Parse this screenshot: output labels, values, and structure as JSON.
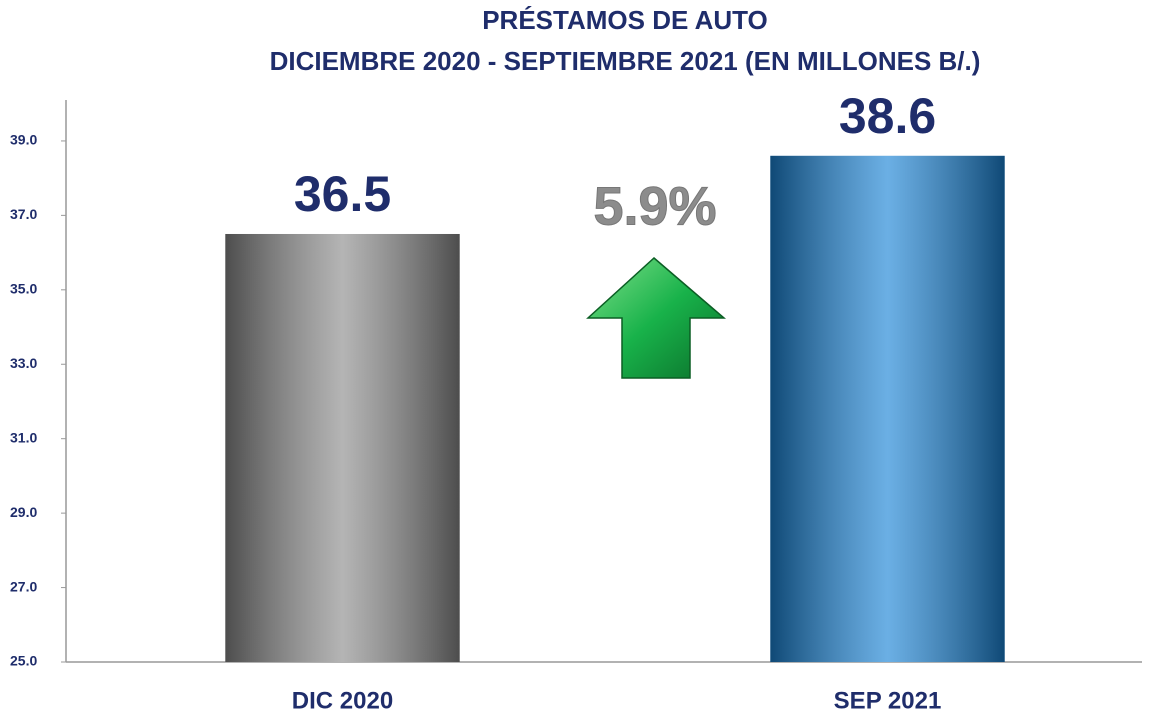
{
  "chart_data": {
    "type": "bar",
    "title": "PRÉSTAMOS DE AUTO",
    "subtitle": "DICIEMBRE 2020 - SEPTIEMBRE 2021 (EN MILLONES B/.)",
    "categories": [
      "DIC 2020",
      "SEP 2021"
    ],
    "values": [
      36.5,
      38.6
    ],
    "colors": [
      "#8c8c8c",
      "#1b84d6"
    ],
    "annotation": "5.9%",
    "ylim": [
      25,
      40.1
    ],
    "yticks": [
      {
        "value": 25,
        "label": "25.0"
      },
      {
        "value": 27,
        "label": "27.0"
      },
      {
        "value": 29,
        "label": "29.0"
      },
      {
        "value": 31,
        "label": "31.0"
      },
      {
        "value": 33,
        "label": "33.0"
      },
      {
        "value": 35,
        "label": "35.0"
      },
      {
        "value": 37,
        "label": "37.0"
      },
      {
        "value": 39,
        "label": "39.0"
      }
    ],
    "grid": false
  }
}
